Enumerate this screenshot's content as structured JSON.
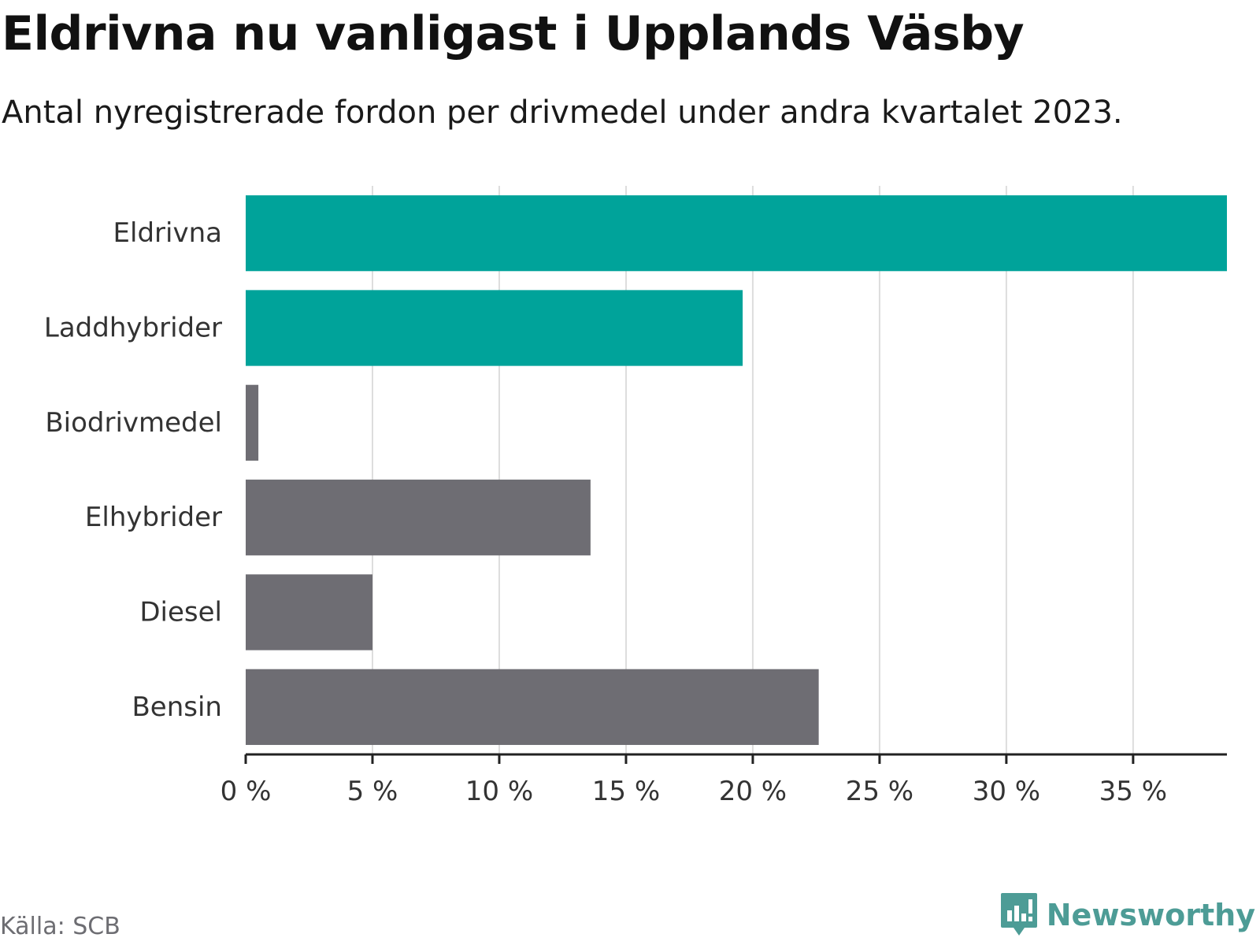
{
  "chart_data": {
    "type": "bar",
    "orientation": "horizontal",
    "title": "Eldrivna nu vanligast i Upplands Väsby",
    "subtitle": "Antal nyregistrerade fordon per drivmedel under andra kvartalet 2023.",
    "categories": [
      "Eldrivna",
      "Laddhybrider",
      "Biodrivmedel",
      "Elhybrider",
      "Diesel",
      "Bensin"
    ],
    "values": [
      38.7,
      19.6,
      0.5,
      13.6,
      5.0,
      22.6
    ],
    "bar_colors": [
      "#00a39a",
      "#00a39a",
      "#6e6d73",
      "#6e6d73",
      "#6e6d73",
      "#6e6d73"
    ],
    "xlim": [
      0,
      38.7
    ],
    "xticks": [
      0,
      5,
      10,
      15,
      20,
      25,
      30,
      35
    ],
    "xtick_labels": [
      "0 %",
      "5 %",
      "10 %",
      "15 %",
      "20 %",
      "25 %",
      "30 %",
      "35 %"
    ],
    "xlabel": "",
    "ylabel": "",
    "grid": true
  },
  "footer": {
    "source": "Källa: SCB",
    "brand": "Newsworthy"
  },
  "colors": {
    "accent": "#00a39a",
    "neutral": "#6e6d73",
    "brand": "#4d9c96",
    "grid": "#dddddd",
    "axis": "#222222"
  }
}
